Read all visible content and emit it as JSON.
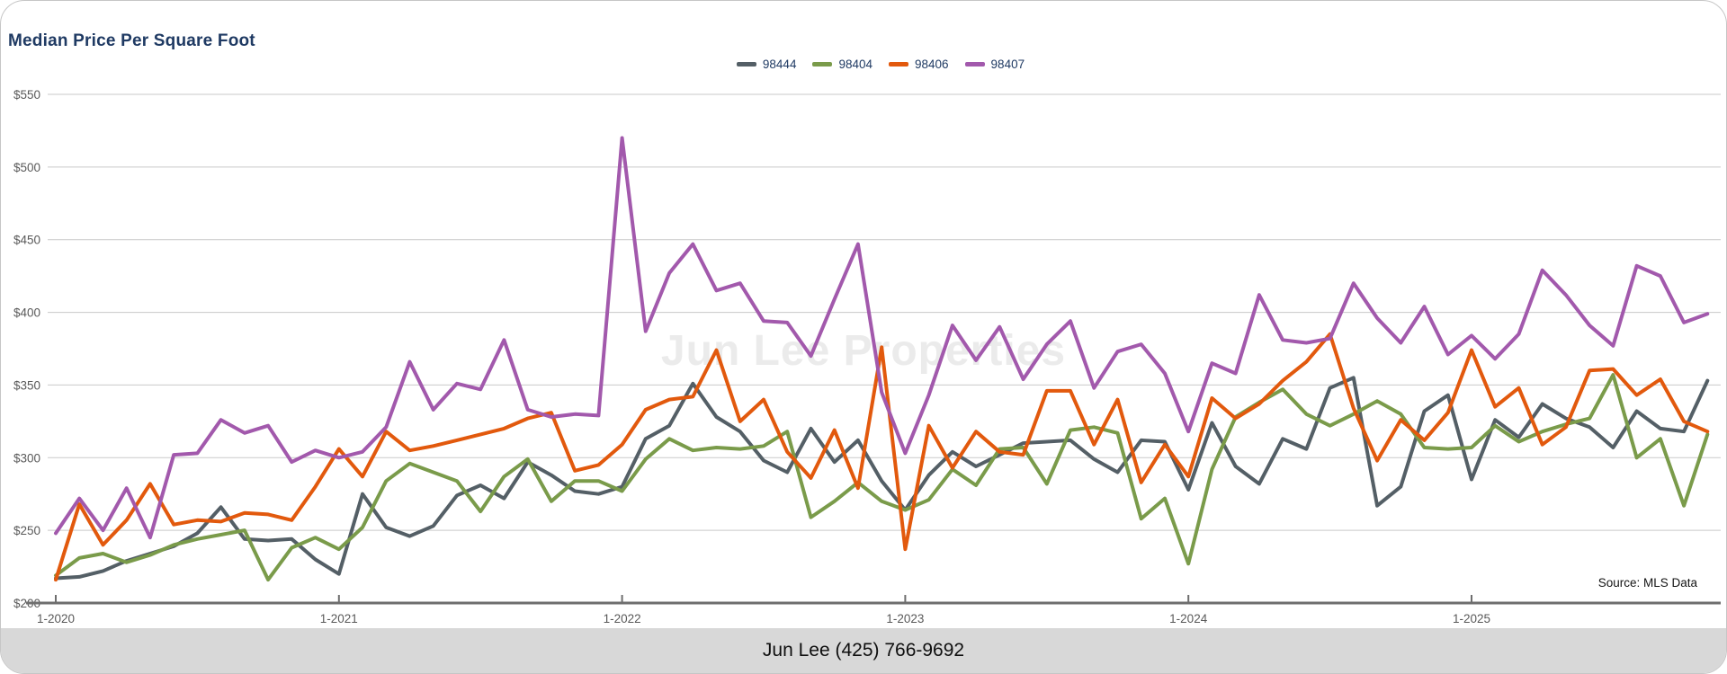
{
  "title": "Median Price Per Square Foot",
  "watermark": "Jun Lee Properties",
  "source_note": "Source: MLS Data",
  "footer": "Jun Lee (425) 766-9692",
  "colors": {
    "title_text": "#1f3a63",
    "legend_text": "#1f3a63",
    "axis_label": "#595959",
    "gridline": "#c9c9c9",
    "axis_line": "#6e6e6e",
    "watermark": "#ebebeb",
    "footer_background": "#d8d8d8",
    "footer_text": "#0f0f0f"
  },
  "chart_data": {
    "type": "line",
    "title": "Median Price Per Square Foot",
    "xlabel": "",
    "ylabel": "",
    "x_unit": "month",
    "x_points_per_year": 12,
    "x_tick_indices": [
      0,
      12,
      24,
      36,
      48,
      60
    ],
    "x_tick_labels": [
      "1-2020",
      "1-2021",
      "1-2022",
      "1-2023",
      "1-2024",
      "1-2025"
    ],
    "x_range_note": "monthly points from 1-2020 through 11-2025, 71 points per series",
    "y_axis": {
      "min": 200,
      "max": 550,
      "tick_step": 50,
      "tick_prefix": "$",
      "tick_labels": [
        "$550",
        "$500",
        "$450",
        "$400",
        "$350",
        "$300",
        "$250",
        "$200"
      ]
    },
    "grid": true,
    "legend_position": "top-center",
    "series": [
      {
        "name": "98444",
        "color": "#545f66",
        "values": [
          217,
          218,
          222,
          229,
          234,
          239,
          248,
          266,
          244,
          243,
          244,
          230,
          220,
          275,
          252,
          246,
          253,
          274,
          281,
          272,
          297,
          288,
          277,
          275,
          280,
          313,
          322,
          351,
          328,
          318,
          298,
          290,
          320,
          297,
          312,
          284,
          264,
          288,
          304,
          294,
          302,
          310,
          311,
          312,
          299,
          290,
          312,
          311,
          278,
          324,
          294,
          282,
          313,
          306,
          348,
          355,
          267,
          280,
          332,
          343,
          285,
          326,
          314,
          337,
          327,
          321,
          307,
          332,
          320,
          318,
          353
        ]
      },
      {
        "name": "98404",
        "color": "#7a9b4a",
        "values": [
          219,
          231,
          234,
          228,
          233,
          240,
          244,
          247,
          250,
          216,
          238,
          245,
          237,
          252,
          284,
          296,
          290,
          284,
          263,
          287,
          299,
          270,
          284,
          284,
          277,
          299,
          313,
          305,
          307,
          306,
          308,
          318,
          259,
          270,
          283,
          270,
          264,
          271,
          292,
          281,
          306,
          307,
          282,
          319,
          321,
          317,
          258,
          272,
          227,
          292,
          328,
          338,
          347,
          330,
          322,
          330,
          339,
          330,
          307,
          306,
          307,
          322,
          311,
          318,
          323,
          327,
          357,
          300,
          313,
          267,
          316
        ]
      },
      {
        "name": "98406",
        "color": "#e2590d",
        "values": [
          216,
          268,
          240,
          257,
          282,
          254,
          257,
          256,
          262,
          261,
          257,
          280,
          306,
          287,
          318,
          305,
          308,
          312,
          316,
          320,
          327,
          331,
          291,
          295,
          309,
          333,
          340,
          342,
          374,
          325,
          340,
          304,
          286,
          319,
          279,
          376,
          237,
          322,
          293,
          318,
          304,
          302,
          346,
          346,
          309,
          340,
          283,
          309,
          287,
          341,
          327,
          337,
          353,
          366,
          385,
          334,
          298,
          326,
          312,
          331,
          374,
          335,
          348,
          309,
          321,
          360,
          361,
          343,
          354,
          325,
          318
        ]
      },
      {
        "name": "98407",
        "color": "#a259ac",
        "values": [
          248,
          272,
          250,
          279,
          245,
          302,
          303,
          326,
          317,
          322,
          297,
          305,
          300,
          304,
          321,
          366,
          333,
          351,
          347,
          381,
          333,
          328,
          330,
          329,
          520,
          387,
          427,
          447,
          415,
          420,
          394,
          393,
          370,
          409,
          447,
          345,
          303,
          343,
          391,
          367,
          390,
          354,
          378,
          394,
          348,
          373,
          378,
          358,
          318,
          365,
          358,
          412,
          381,
          379,
          382,
          420,
          396,
          379,
          404,
          371,
          384,
          368,
          385,
          429,
          412,
          391,
          377,
          432,
          425,
          393,
          399
        ]
      }
    ]
  }
}
